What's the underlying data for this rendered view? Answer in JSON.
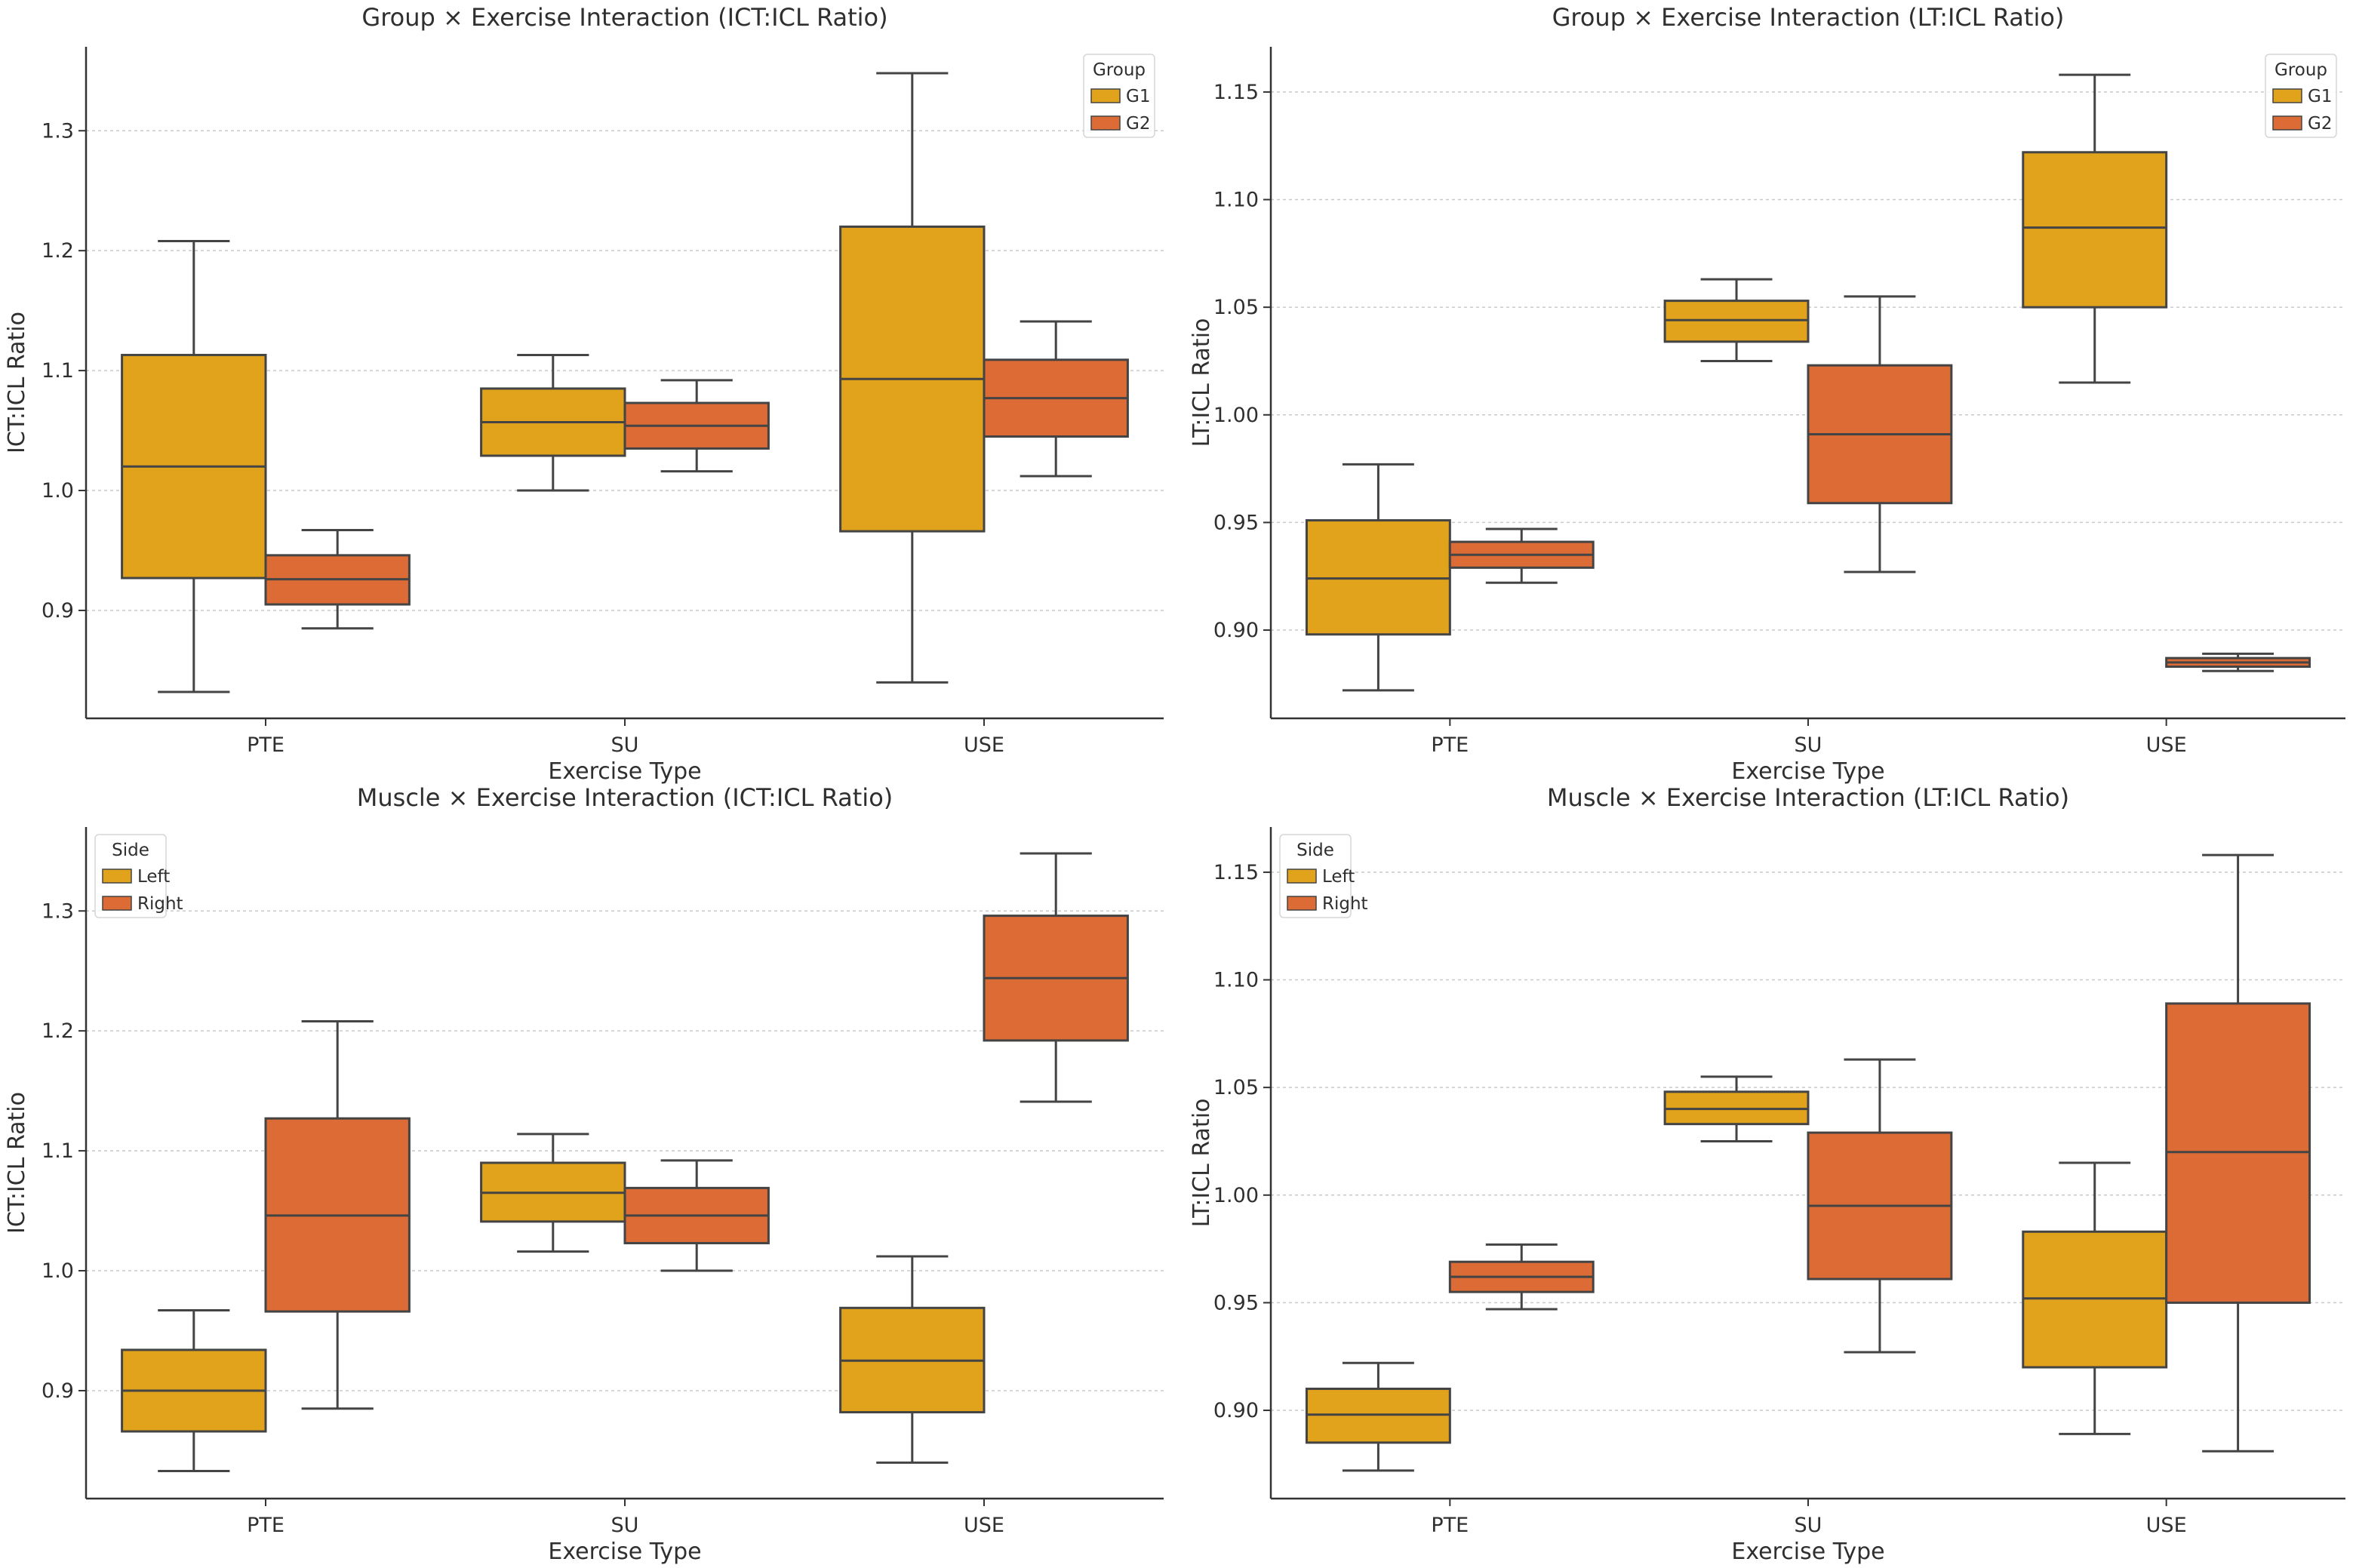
{
  "colors": {
    "G1": "#e1a21c",
    "G2": "#dc6b36",
    "Left": "#e1a21c",
    "Right": "#dc6b36",
    "line": "#444444",
    "grid": "#c9c9c9"
  },
  "chart_data": [
    {
      "type": "box",
      "title": "Group × Exercise Interaction (ICT:ICL Ratio)",
      "xlabel": "Exercise Type",
      "ylabel": "ICT:ICL Ratio",
      "categories": [
        "PTE",
        "SU",
        "USE"
      ],
      "ylim": [
        0.81,
        1.37
      ],
      "yticks": [
        0.9,
        1.0,
        1.1,
        1.2,
        1.3
      ],
      "ytick_labels": [
        "0.9",
        "1.0",
        "1.1",
        "1.2",
        "1.3"
      ],
      "grid": true,
      "legend": {
        "title": "Group",
        "position": "top-right",
        "entries": [
          "G1",
          "G2"
        ]
      },
      "series": [
        {
          "name": "G1",
          "boxes": [
            {
              "min": 0.832,
              "q1": 0.927,
              "median": 1.02,
              "q3": 1.113,
              "max": 1.208
            },
            {
              "min": 1.0,
              "q1": 1.029,
              "median": 1.057,
              "q3": 1.085,
              "max": 1.113
            },
            {
              "min": 0.84,
              "q1": 0.966,
              "median": 1.093,
              "q3": 1.22,
              "max": 1.348
            }
          ]
        },
        {
          "name": "G2",
          "boxes": [
            {
              "min": 0.885,
              "q1": 0.905,
              "median": 0.926,
              "q3": 0.946,
              "max": 0.967
            },
            {
              "min": 1.016,
              "q1": 1.035,
              "median": 1.054,
              "q3": 1.073,
              "max": 1.092
            },
            {
              "min": 1.012,
              "q1": 1.045,
              "median": 1.077,
              "q3": 1.109,
              "max": 1.141
            }
          ]
        }
      ]
    },
    {
      "type": "box",
      "title": "Group × Exercise Interaction (LT:ICL Ratio)",
      "xlabel": "Exercise Type",
      "ylabel": "LT:ICL Ratio",
      "categories": [
        "PTE",
        "SU",
        "USE"
      ],
      "ylim": [
        0.859,
        1.171
      ],
      "yticks": [
        0.9,
        0.95,
        1.0,
        1.05,
        1.1,
        1.15
      ],
      "ytick_labels": [
        "0.90",
        "0.95",
        "1.00",
        "1.05",
        "1.10",
        "1.15"
      ],
      "grid": true,
      "legend": {
        "title": "Group",
        "position": "top-right",
        "entries": [
          "G1",
          "G2"
        ]
      },
      "series": [
        {
          "name": "G1",
          "boxes": [
            {
              "min": 0.872,
              "q1": 0.898,
              "median": 0.924,
              "q3": 0.951,
              "max": 0.977
            },
            {
              "min": 1.025,
              "q1": 1.034,
              "median": 1.044,
              "q3": 1.053,
              "max": 1.063
            },
            {
              "min": 1.015,
              "q1": 1.05,
              "median": 1.087,
              "q3": 1.122,
              "max": 1.158
            }
          ]
        },
        {
          "name": "G2",
          "boxes": [
            {
              "min": 0.922,
              "q1": 0.929,
              "median": 0.935,
              "q3": 0.941,
              "max": 0.947
            },
            {
              "min": 0.927,
              "q1": 0.959,
              "median": 0.991,
              "q3": 1.023,
              "max": 1.055
            },
            {
              "min": 0.881,
              "q1": 0.883,
              "median": 0.885,
              "q3": 0.887,
              "max": 0.889
            }
          ]
        }
      ]
    },
    {
      "type": "box",
      "title": "Muscle × Exercise Interaction (ICT:ICL Ratio)",
      "xlabel": "Exercise Type",
      "ylabel": "ICT:ICL Ratio",
      "categories": [
        "PTE",
        "SU",
        "USE"
      ],
      "ylim": [
        0.81,
        1.37
      ],
      "yticks": [
        0.9,
        1.0,
        1.1,
        1.2,
        1.3
      ],
      "ytick_labels": [
        "0.9",
        "1.0",
        "1.1",
        "1.2",
        "1.3"
      ],
      "grid": true,
      "legend": {
        "title": "Side",
        "position": "top-left",
        "entries": [
          "Left",
          "Right"
        ]
      },
      "series": [
        {
          "name": "Left",
          "boxes": [
            {
              "min": 0.833,
              "q1": 0.866,
              "median": 0.9,
              "q3": 0.934,
              "max": 0.967
            },
            {
              "min": 1.016,
              "q1": 1.041,
              "median": 1.065,
              "q3": 1.09,
              "max": 1.114
            },
            {
              "min": 0.84,
              "q1": 0.882,
              "median": 0.925,
              "q3": 0.969,
              "max": 1.012
            }
          ]
        },
        {
          "name": "Right",
          "boxes": [
            {
              "min": 0.885,
              "q1": 0.966,
              "median": 1.046,
              "q3": 1.127,
              "max": 1.208
            },
            {
              "min": 1.0,
              "q1": 1.023,
              "median": 1.046,
              "q3": 1.069,
              "max": 1.092
            },
            {
              "min": 1.141,
              "q1": 1.192,
              "median": 1.244,
              "q3": 1.296,
              "max": 1.348
            }
          ]
        }
      ]
    },
    {
      "type": "box",
      "title": "Muscle × Exercise Interaction (LT:ICL Ratio)",
      "xlabel": "Exercise Type",
      "ylabel": "LT:ICL Ratio",
      "categories": [
        "PTE",
        "SU",
        "USE"
      ],
      "ylim": [
        0.859,
        1.171
      ],
      "yticks": [
        0.9,
        0.95,
        1.0,
        1.05,
        1.1,
        1.15
      ],
      "ytick_labels": [
        "0.90",
        "0.95",
        "1.00",
        "1.05",
        "1.10",
        "1.15"
      ],
      "grid": true,
      "legend": {
        "title": "Side",
        "position": "top-left",
        "entries": [
          "Left",
          "Right"
        ]
      },
      "series": [
        {
          "name": "Left",
          "boxes": [
            {
              "min": 0.872,
              "q1": 0.885,
              "median": 0.898,
              "q3": 0.91,
              "max": 0.922
            },
            {
              "min": 1.025,
              "q1": 1.033,
              "median": 1.04,
              "q3": 1.048,
              "max": 1.055
            },
            {
              "min": 0.889,
              "q1": 0.92,
              "median": 0.952,
              "q3": 0.983,
              "max": 1.015
            }
          ]
        },
        {
          "name": "Right",
          "boxes": [
            {
              "min": 0.947,
              "q1": 0.955,
              "median": 0.962,
              "q3": 0.969,
              "max": 0.977
            },
            {
              "min": 0.927,
              "q1": 0.961,
              "median": 0.995,
              "q3": 1.029,
              "max": 1.063
            },
            {
              "min": 0.881,
              "q1": 0.95,
              "median": 1.02,
              "q3": 1.089,
              "max": 1.158
            }
          ]
        }
      ]
    }
  ]
}
